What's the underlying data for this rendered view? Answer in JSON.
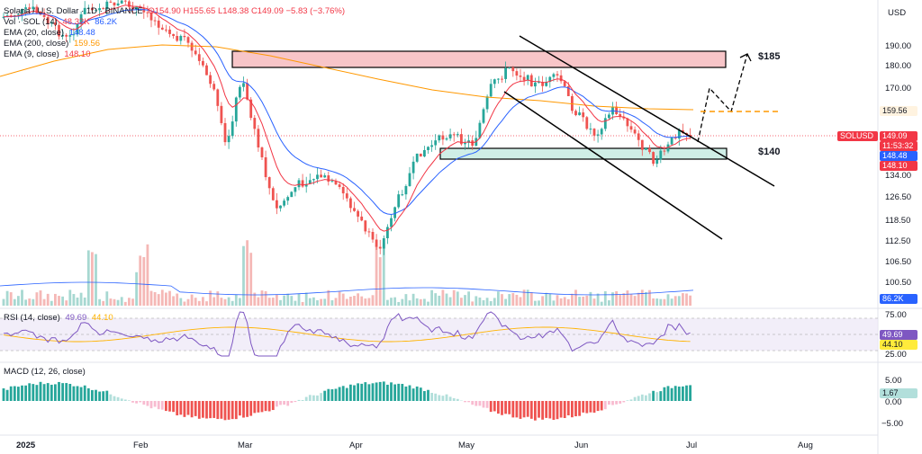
{
  "header": {
    "title": "Solana / U.S. Dollar · 1D · BINANCE",
    "ohlc": "O154.90 H155.65 L148.38 C149.09 −5.83 (−3.76%)",
    "vol_label": "Vol · SOL (14)",
    "vol_values": [
      "48.32K",
      "86.2K"
    ],
    "ema20_label": "EMA (20, close)",
    "ema20_value": "148.48",
    "ema200_label": "EMA (200, close)",
    "ema200_value": "159.56",
    "ema9_label": "EMA (9, close)",
    "ema9_value": "148.10",
    "currency": "USD"
  },
  "price_axis": {
    "ticks": [
      "190.00",
      "180.00",
      "170.00",
      "159.56",
      "149.09",
      "148.48",
      "148.10",
      "134.00",
      "126.50",
      "118.50",
      "112.50",
      "106.50",
      "100.50",
      "86.2K"
    ],
    "plain_ticks": [
      "190.00",
      "180.00",
      "170.00",
      "134.00",
      "126.50",
      "118.50",
      "112.50",
      "106.50",
      "100.50"
    ],
    "symbol_label": "SOLUSD",
    "countdown": "11:53:32",
    "last_price": "149.09",
    "ema200_badge": "159.56",
    "ema20_badge": "148.48",
    "ema9_badge": "148.10",
    "vol_badge": "86.2K"
  },
  "annotations": {
    "resistance_label": "$185",
    "support_label": "$140"
  },
  "rsi": {
    "label": "RSI (14, close)",
    "value": "49.69",
    "ma_value": "44.10",
    "ticks": [
      "75.00",
      "50.00",
      "25.00"
    ]
  },
  "macd": {
    "label": "MACD (12, 26, close)",
    "value": "1.67",
    "ticks": [
      "5.00",
      "0.00",
      "−5.00"
    ]
  },
  "time_axis": {
    "labels": [
      "2025",
      "Feb",
      "Mar",
      "Apr",
      "May",
      "Jun",
      "Jul",
      "Aug"
    ]
  },
  "colors": {
    "up": "#26a69a",
    "down": "#ef5350",
    "ema20": "#2962ff",
    "ema9": "#f23645",
    "ema200": "#ff9800",
    "rsi": "#7e57c2",
    "resistance_zone": "#f7c5c8",
    "support_zone": "#cfeee6"
  }
}
